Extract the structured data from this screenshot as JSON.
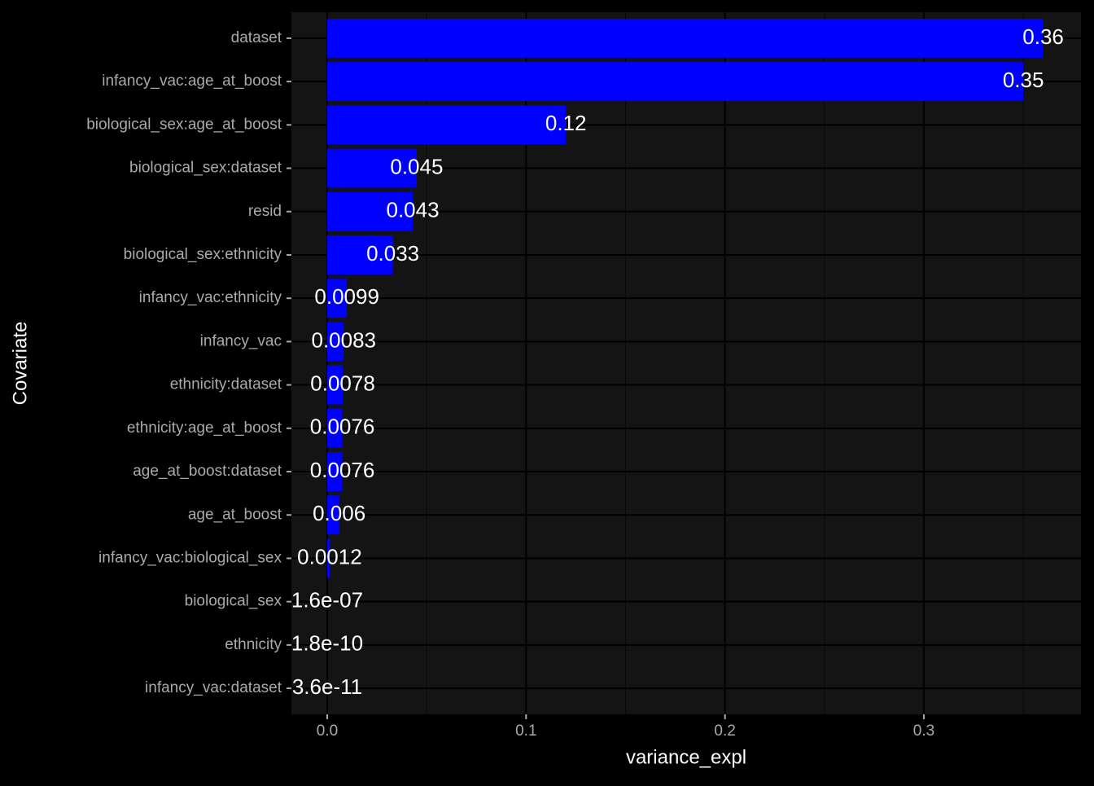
{
  "chart_data": {
    "type": "bar",
    "orientation": "horizontal",
    "x_label": "variance_expl",
    "y_label": "Covariate",
    "categories": [
      "dataset",
      "infancy_vac:age_at_boost",
      "biological_sex:age_at_boost",
      "biological_sex:dataset",
      "resid",
      "biological_sex:ethnicity",
      "infancy_vac:ethnicity",
      "infancy_vac",
      "ethnicity:dataset",
      "ethnicity:age_at_boost",
      "age_at_boost:dataset",
      "age_at_boost",
      "infancy_vac:biological_sex",
      "biological_sex",
      "ethnicity",
      "infancy_vac:dataset"
    ],
    "values": [
      0.36,
      0.35,
      0.12,
      0.045,
      0.043,
      0.033,
      0.0099,
      0.0083,
      0.0078,
      0.0076,
      0.0076,
      0.006,
      0.0012,
      1.6e-07,
      1.8e-10,
      3.6e-11
    ],
    "value_labels": [
      "0.36",
      "0.35",
      "0.12",
      "0.045",
      "0.043",
      "0.033",
      "0.0099",
      "0.0083",
      "0.0078",
      "0.0076",
      "0.0076",
      "0.006",
      "0.0012",
      "1.6e-07",
      "1.8e-10",
      "3.6e-11"
    ],
    "color": "#0000ff",
    "xlim": [
      -0.018,
      0.379
    ],
    "xticks": [
      {
        "value": 0,
        "label": "0.0"
      },
      0.1,
      0.2,
      0.3
    ],
    "minor_xticks": [
      0.05,
      0.15,
      0.25,
      0.35
    ],
    "grid": true
  }
}
